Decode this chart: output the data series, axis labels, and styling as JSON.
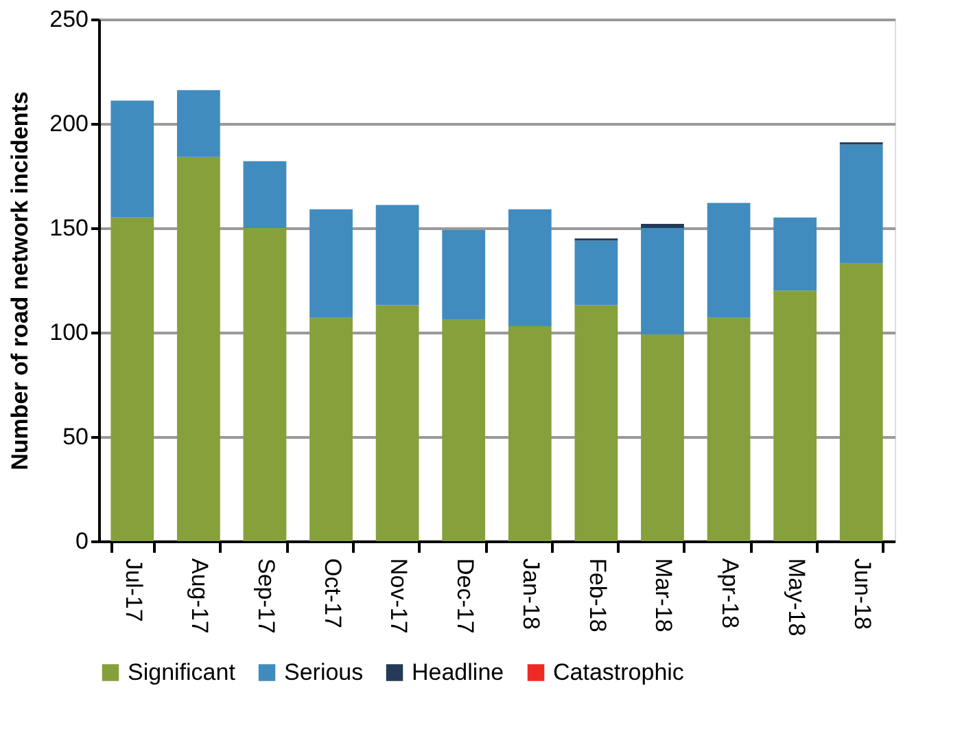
{
  "chart_data": {
    "type": "bar",
    "stacked": true,
    "ylabel": "Number of road network incidents",
    "categories": [
      "Jul-17",
      "Aug-17",
      "Sep-17",
      "Oct-17",
      "Nov-17",
      "Dec-17",
      "Jan-18",
      "Feb-18",
      "Mar-18",
      "Apr-18",
      "May-18",
      "Jun-18"
    ],
    "series": [
      {
        "name": "Significant",
        "color": "#86a03c",
        "values": [
          155,
          184,
          150,
          107,
          113,
          106,
          103,
          113,
          99,
          107,
          120,
          133
        ]
      },
      {
        "name": "Serious",
        "color": "#418cbf",
        "values": [
          56,
          32,
          32,
          52,
          48,
          43,
          56,
          31,
          51,
          55,
          35,
          57
        ]
      },
      {
        "name": "Headline",
        "color": "#243a56",
        "values": [
          0,
          0,
          0,
          0,
          0,
          0,
          0,
          1,
          2,
          0,
          0,
          1
        ]
      },
      {
        "name": "Catastrophic",
        "color": "#ee2a24",
        "values": [
          0,
          0,
          0,
          0,
          0,
          0,
          0,
          0,
          0,
          0,
          0,
          0
        ]
      }
    ],
    "ylim": [
      0,
      250
    ],
    "yticks": [
      0,
      50,
      100,
      150,
      200,
      250
    ],
    "grid": "y",
    "legend": "bottom"
  }
}
